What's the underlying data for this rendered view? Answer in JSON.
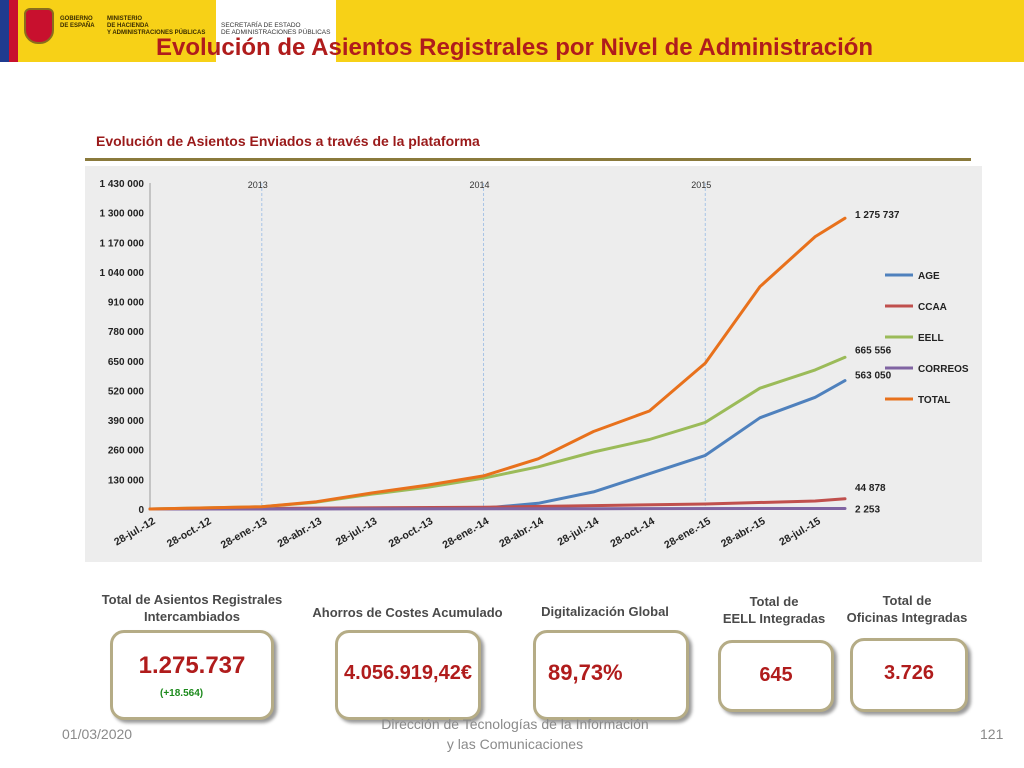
{
  "header": {
    "gobierno_lines": [
      "GOBIERNO",
      "DE ESPAÑA"
    ],
    "ministerio_lines": [
      "MINISTERIO",
      "DE HACIENDA",
      "Y ADMINISTRACIONES PÚBLICAS"
    ],
    "secretaria_lines": [
      "SECRETARÍA DE ESTADO",
      "DE ADMINISTRACIONES PÚBLICAS"
    ],
    "title": "Evolución de Asientos Registrales por Nivel de Administración"
  },
  "chart_data": {
    "type": "line",
    "title": "Evolución de Asientos Enviados a través de la plataforma",
    "x_labels": [
      "28-jul.-12",
      "28-oct.-12",
      "28-ene.-13",
      "28-abr.-13",
      "28-jul.-13",
      "28-oct.-13",
      "28-ene.-14",
      "28-abr.-14",
      "28-jul.-14",
      "28-oct.-14",
      "28-ene.-15",
      "28-abr.-15",
      "28-jul.-15"
    ],
    "year_markers": [
      {
        "label": "2013",
        "x": "28-ene.-13"
      },
      {
        "label": "2014",
        "x": "28-ene.-14"
      },
      {
        "label": "2015",
        "x": "28-ene.-15"
      }
    ],
    "y_ticks": [
      "0",
      "130 000",
      "260 000",
      "390 000",
      "520 000",
      "650 000",
      "780 000",
      "910 000",
      "1 040 000",
      "1 170 000",
      "1 300 000",
      "1 430 000"
    ],
    "ylim": [
      0,
      1430000
    ],
    "x_end": "15-sep.-15",
    "series": [
      {
        "name": "AGE",
        "color": "#4f81bd",
        "x": [
          "28-jul.-12",
          "28-ene.-14",
          "28-abr.-14",
          "28-jul.-14",
          "28-oct.-14",
          "28-ene.-15",
          "28-abr.-15",
          "28-jul.-15",
          "15-sep.-15"
        ],
        "values": [
          0,
          4000,
          25000,
          75000,
          155000,
          235000,
          400000,
          490000,
          563050
        ]
      },
      {
        "name": "CCAA",
        "color": "#c0504d",
        "x": [
          "28-jul.-12",
          "28-ene.-14",
          "28-jul.-14",
          "28-ene.-15",
          "28-jul.-15",
          "15-sep.-15"
        ],
        "values": [
          0,
          8000,
          15000,
          22000,
          35000,
          44878
        ]
      },
      {
        "name": "EELL",
        "color": "#9bbb59",
        "x": [
          "28-jul.-12",
          "28-ene.-13",
          "28-abr.-13",
          "28-jul.-13",
          "28-oct.-13",
          "28-ene.-14",
          "28-abr.-14",
          "28-jul.-14",
          "28-oct.-14",
          "28-ene.-15",
          "28-abr.-15",
          "28-jul.-15",
          "15-sep.-15"
        ],
        "values": [
          0,
          10000,
          30000,
          65000,
          95000,
          135000,
          185000,
          250000,
          305000,
          380000,
          530000,
          610000,
          665556
        ]
      },
      {
        "name": "CORREOS",
        "color": "#8064a2",
        "x": [
          "28-jul.-12",
          "28-jul.-13",
          "28-jul.-14",
          "28-jul.-15",
          "15-sep.-15"
        ],
        "values": [
          0,
          500,
          1200,
          2000,
          2253
        ]
      },
      {
        "name": "TOTAL",
        "color": "#e8711c",
        "x": [
          "28-jul.-12",
          "28-ene.-13",
          "28-abr.-13",
          "28-jul.-13",
          "28-oct.-13",
          "28-ene.-14",
          "28-abr.-14",
          "28-jul.-14",
          "28-oct.-14",
          "28-ene.-15",
          "28-abr.-15",
          "28-jul.-15",
          "15-sep.-15"
        ],
        "values": [
          0,
          10000,
          32000,
          70000,
          105000,
          145000,
          220000,
          340000,
          430000,
          640000,
          975000,
          1195000,
          1275737
        ]
      }
    ],
    "end_labels": [
      "1 275 737",
      "665 556",
      "563 050",
      "44 878",
      "2 253"
    ],
    "legend": [
      "AGE",
      "CCAA",
      "EELL",
      "CORREOS",
      "TOTAL"
    ],
    "legend_position": "right",
    "grid": "vertical dashed at year boundaries"
  },
  "kpis": [
    {
      "title_lines": [
        "Total de Asientos Registrales",
        "Intercambiados"
      ],
      "value": "1.275.737",
      "delta": "(+18.564)"
    },
    {
      "title_lines": [
        "Ahorros de Costes  Acumulado"
      ],
      "value": "4.056.919,42€"
    },
    {
      "title_lines": [
        "Digitalización Global"
      ],
      "value": "89,73%"
    },
    {
      "title_lines": [
        "Total de",
        "EELL Integradas"
      ],
      "value": "645"
    },
    {
      "title_lines": [
        "Total de",
        "Oficinas Integradas"
      ],
      "value": "3.726"
    }
  ],
  "footer": {
    "date": "01/03/2020",
    "center_lines": [
      "Dirección de Tecnologías de la Información",
      "y las Comunicaciones"
    ],
    "page": "121"
  }
}
